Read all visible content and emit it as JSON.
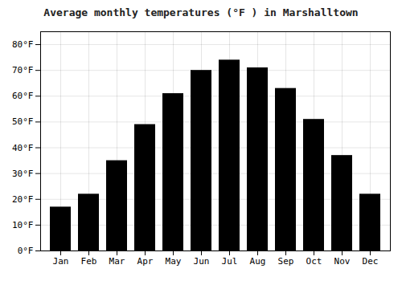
{
  "chart_data": {
    "type": "bar",
    "title": "Average monthly temperatures (°F ) in Marshalltown",
    "categories": [
      "Jan",
      "Feb",
      "Mar",
      "Apr",
      "May",
      "Jun",
      "Jul",
      "Aug",
      "Sep",
      "Oct",
      "Nov",
      "Dec"
    ],
    "values": [
      17,
      22,
      35,
      49,
      61,
      70,
      74,
      71,
      63,
      51,
      37,
      22
    ],
    "ylim": [
      0,
      85
    ],
    "yticks": [
      {
        "value": 0,
        "label": "0°F"
      },
      {
        "value": 10,
        "label": "10°F"
      },
      {
        "value": 20,
        "label": "20°F"
      },
      {
        "value": 30,
        "label": "30°F"
      },
      {
        "value": 40,
        "label": "40°F"
      },
      {
        "value": 50,
        "label": "50°F"
      },
      {
        "value": 60,
        "label": "60°F"
      },
      {
        "value": 70,
        "label": "70°F"
      },
      {
        "value": 80,
        "label": "80°F"
      }
    ],
    "grid": true
  }
}
